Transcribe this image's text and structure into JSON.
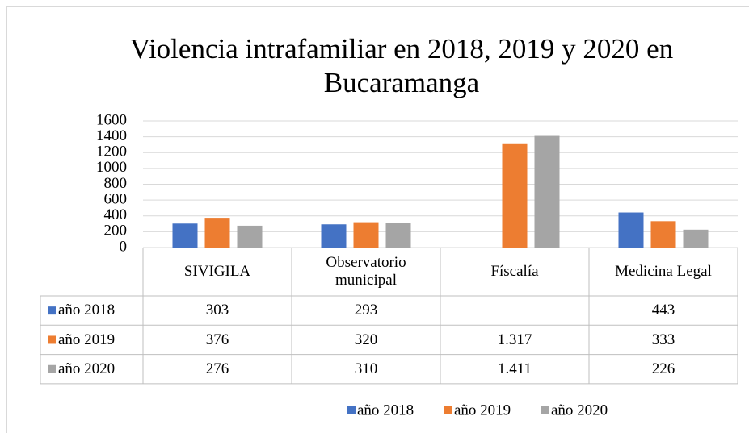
{
  "chart_data": {
    "type": "bar",
    "title": "Violencia intrafamiliar en 2018, 2019 y 2020 en Bucaramanga",
    "categories": [
      "SIVIGILA",
      "Observatorio municipal",
      "Físcalía",
      "Medicina Legal"
    ],
    "series": [
      {
        "name": "año 2018",
        "color": "#4472c4",
        "values": [
          303,
          293,
          null,
          443
        ]
      },
      {
        "name": "año 2019",
        "color": "#ed7d31",
        "values": [
          376,
          320,
          1317,
          333
        ],
        "value_labels": [
          null,
          null,
          "1.317",
          null
        ]
      },
      {
        "name": "año 2020",
        "color": "#a5a5a5",
        "values": [
          276,
          310,
          1411,
          226
        ],
        "value_labels": [
          null,
          null,
          "1.411",
          null
        ]
      }
    ],
    "ylim": [
      0,
      1600
    ],
    "yticks": [
      0,
      200,
      400,
      600,
      800,
      1000,
      1200,
      1400,
      1600
    ],
    "grid": true,
    "legend": "bottom",
    "data_table": true
  }
}
